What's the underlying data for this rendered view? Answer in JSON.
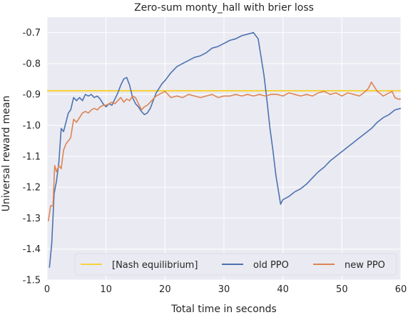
{
  "chart_data": {
    "type": "line",
    "title": "Zero-sum monty_hall with brier loss",
    "xlabel": "Total time in seconds",
    "ylabel": "Universal reward mean",
    "xlim": [
      0,
      60
    ],
    "ylim": [
      -1.5,
      -0.65
    ],
    "xticks": [
      "0",
      "10",
      "20",
      "30",
      "40",
      "50",
      "60"
    ],
    "yticks": [
      "-0.7",
      "-0.8",
      "-0.9",
      "-1.0",
      "-1.1",
      "-1.2",
      "-1.3",
      "-1.4",
      "-1.5"
    ],
    "grid": true,
    "legend_position": "bottom-right",
    "series": [
      {
        "name": "[Nash equilibrium]",
        "color": "#f5d33f",
        "kind": "hline",
        "y": -0.888
      },
      {
        "name": "old PPO",
        "color": "#4c72b0",
        "x": [
          0.4,
          0.8,
          1.2,
          1.6,
          2.0,
          2.4,
          2.8,
          3.2,
          3.6,
          4.0,
          4.5,
          5.0,
          5.5,
          6.0,
          6.5,
          7.0,
          7.5,
          8.0,
          8.5,
          9.0,
          9.5,
          10.0,
          10.5,
          11.0,
          11.5,
          12.0,
          12.5,
          13.0,
          13.5,
          14.0,
          14.5,
          15.0,
          15.5,
          16.0,
          16.5,
          17.0,
          17.5,
          18.0,
          18.5,
          19.0,
          19.5,
          20.0,
          21.0,
          22.0,
          23.0,
          24.0,
          25.0,
          26.0,
          27.0,
          28.0,
          29.0,
          30.0,
          31.0,
          32.0,
          33.0,
          34.0,
          35.0,
          35.8,
          36.3,
          36.8,
          37.3,
          37.8,
          38.3,
          38.8,
          39.3,
          39.6,
          40.0,
          40.5,
          41.0,
          42.0,
          43.0,
          44.0,
          45.0,
          46.0,
          47.0,
          48.0,
          49.0,
          50.0,
          51.0,
          52.0,
          53.0,
          54.0,
          55.0,
          56.0,
          57.0,
          58.0,
          59.0,
          60.0
        ],
        "values": [
          -1.46,
          -1.38,
          -1.22,
          -1.18,
          -1.12,
          -1.01,
          -1.02,
          -0.99,
          -0.96,
          -0.95,
          -0.91,
          -0.92,
          -0.91,
          -0.92,
          -0.9,
          -0.905,
          -0.9,
          -0.91,
          -0.905,
          -0.915,
          -0.93,
          -0.94,
          -0.93,
          -0.935,
          -0.915,
          -0.895,
          -0.87,
          -0.85,
          -0.845,
          -0.87,
          -0.91,
          -0.93,
          -0.94,
          -0.955,
          -0.965,
          -0.96,
          -0.945,
          -0.92,
          -0.895,
          -0.88,
          -0.865,
          -0.855,
          -0.83,
          -0.81,
          -0.8,
          -0.79,
          -0.78,
          -0.775,
          -0.765,
          -0.75,
          -0.745,
          -0.735,
          -0.725,
          -0.72,
          -0.71,
          -0.705,
          -0.7,
          -0.72,
          -0.78,
          -0.84,
          -0.92,
          -1.01,
          -1.08,
          -1.16,
          -1.22,
          -1.255,
          -1.24,
          -1.235,
          -1.23,
          -1.215,
          -1.205,
          -1.19,
          -1.17,
          -1.15,
          -1.135,
          -1.115,
          -1.1,
          -1.085,
          -1.07,
          -1.055,
          -1.04,
          -1.025,
          -1.01,
          -0.99,
          -0.975,
          -0.965,
          -0.95,
          -0.945
        ]
      },
      {
        "name": "new PPO",
        "color": "#dd8452",
        "x": [
          0.2,
          0.6,
          1.0,
          1.3,
          1.6,
          2.0,
          2.4,
          2.8,
          3.2,
          3.6,
          4.0,
          4.5,
          5.0,
          5.5,
          6.0,
          6.5,
          7.0,
          7.5,
          8.0,
          8.5,
          9.0,
          9.5,
          10.0,
          10.5,
          11.0,
          11.5,
          12.0,
          12.5,
          13.0,
          13.5,
          14.0,
          14.5,
          15.0,
          15.5,
          16.0,
          16.5,
          17.0,
          17.5,
          18.0,
          18.5,
          19.0,
          19.5,
          20.0,
          20.5,
          21.0,
          22.0,
          23.0,
          24.0,
          25.0,
          26.0,
          27.0,
          28.0,
          29.0,
          30.0,
          31.0,
          32.0,
          33.0,
          34.0,
          35.0,
          36.0,
          37.0,
          38.0,
          39.0,
          40.0,
          41.0,
          42.0,
          43.0,
          44.0,
          45.0,
          46.0,
          47.0,
          48.0,
          49.0,
          50.0,
          51.0,
          52.0,
          53.0,
          54.0,
          54.5,
          55.0,
          55.5,
          56.0,
          57.0,
          58.0,
          58.5,
          59.0,
          59.5,
          60.0
        ],
        "values": [
          -1.31,
          -1.26,
          -1.26,
          -1.13,
          -1.15,
          -1.13,
          -1.14,
          -1.08,
          -1.06,
          -1.05,
          -1.04,
          -0.98,
          -0.99,
          -0.975,
          -0.96,
          -0.955,
          -0.96,
          -0.95,
          -0.945,
          -0.95,
          -0.94,
          -0.935,
          -0.935,
          -0.93,
          -0.925,
          -0.93,
          -0.92,
          -0.91,
          -0.925,
          -0.915,
          -0.92,
          -0.905,
          -0.91,
          -0.93,
          -0.95,
          -0.94,
          -0.935,
          -0.925,
          -0.915,
          -0.905,
          -0.9,
          -0.895,
          -0.89,
          -0.9,
          -0.91,
          -0.905,
          -0.91,
          -0.9,
          -0.905,
          -0.91,
          -0.905,
          -0.9,
          -0.91,
          -0.905,
          -0.905,
          -0.9,
          -0.905,
          -0.9,
          -0.905,
          -0.9,
          -0.905,
          -0.9,
          -0.9,
          -0.905,
          -0.895,
          -0.9,
          -0.905,
          -0.9,
          -0.905,
          -0.895,
          -0.89,
          -0.9,
          -0.895,
          -0.905,
          -0.895,
          -0.9,
          -0.905,
          -0.89,
          -0.88,
          -0.86,
          -0.875,
          -0.89,
          -0.905,
          -0.895,
          -0.89,
          -0.91,
          -0.915,
          -0.915
        ]
      }
    ]
  }
}
